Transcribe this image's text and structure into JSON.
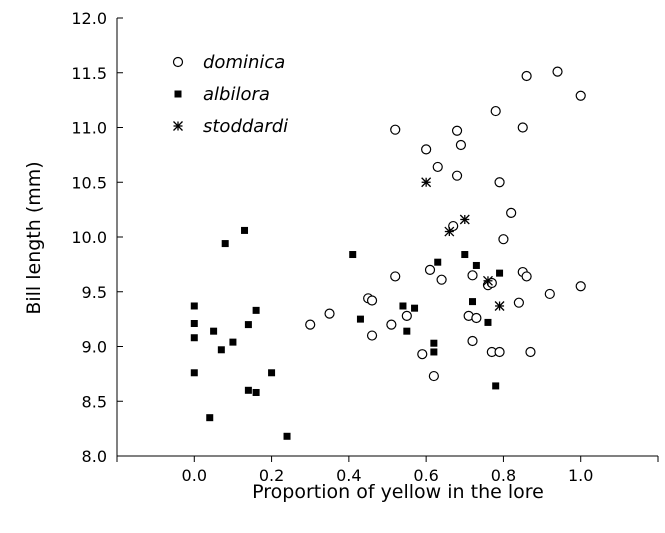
{
  "chart_data": {
    "type": "scatter",
    "xlabel": "Proportion of yellow in the lore",
    "ylabel": "Bill length (mm)",
    "xlim": [
      -0.2,
      1.2
    ],
    "ylim": [
      8.0,
      12.0
    ],
    "x_ticks": [
      "0.0",
      "0.2",
      "0.4",
      "0.6",
      "0.8",
      "1.0"
    ],
    "y_ticks": [
      "8.0",
      "8.5",
      "9.0",
      "9.5",
      "10.0",
      "10.5",
      "11.0",
      "11.5",
      "12.0"
    ],
    "legend_position": "top-left",
    "grid": false,
    "series": [
      {
        "name": "dominica",
        "marker": "open-circle",
        "points": [
          [
            0.3,
            9.2
          ],
          [
            0.35,
            9.3
          ],
          [
            0.45,
            9.44
          ],
          [
            0.46,
            9.42
          ],
          [
            0.46,
            9.1
          ],
          [
            0.51,
            9.2
          ],
          [
            0.52,
            9.64
          ],
          [
            0.52,
            10.98
          ],
          [
            0.55,
            9.28
          ],
          [
            0.59,
            8.93
          ],
          [
            0.6,
            10.8
          ],
          [
            0.61,
            9.7
          ],
          [
            0.62,
            8.73
          ],
          [
            0.63,
            10.64
          ],
          [
            0.64,
            9.61
          ],
          [
            0.67,
            10.1
          ],
          [
            0.68,
            10.97
          ],
          [
            0.68,
            10.56
          ],
          [
            0.69,
            10.84
          ],
          [
            0.71,
            9.28
          ],
          [
            0.72,
            9.05
          ],
          [
            0.72,
            9.65
          ],
          [
            0.73,
            9.26
          ],
          [
            0.76,
            9.56
          ],
          [
            0.77,
            8.95
          ],
          [
            0.77,
            9.58
          ],
          [
            0.78,
            11.15
          ],
          [
            0.79,
            10.5
          ],
          [
            0.79,
            8.95
          ],
          [
            0.8,
            9.98
          ],
          [
            0.82,
            10.22
          ],
          [
            0.84,
            9.4
          ],
          [
            0.85,
            9.68
          ],
          [
            0.85,
            11.0
          ],
          [
            0.86,
            11.47
          ],
          [
            0.86,
            9.64
          ],
          [
            0.87,
            8.95
          ],
          [
            0.92,
            9.48
          ],
          [
            0.94,
            11.51
          ],
          [
            1.0,
            11.29
          ],
          [
            1.0,
            9.55
          ]
        ]
      },
      {
        "name": "albilora",
        "marker": "filled-square",
        "points": [
          [
            0.0,
            9.37
          ],
          [
            0.0,
            9.21
          ],
          [
            0.0,
            9.08
          ],
          [
            0.0,
            8.76
          ],
          [
            0.04,
            8.35
          ],
          [
            0.05,
            9.14
          ],
          [
            0.07,
            8.97
          ],
          [
            0.08,
            9.94
          ],
          [
            0.1,
            9.04
          ],
          [
            0.13,
            10.06
          ],
          [
            0.14,
            9.2
          ],
          [
            0.14,
            8.6
          ],
          [
            0.16,
            9.33
          ],
          [
            0.16,
            8.58
          ],
          [
            0.2,
            8.76
          ],
          [
            0.24,
            8.18
          ],
          [
            0.41,
            9.84
          ],
          [
            0.43,
            9.25
          ],
          [
            0.54,
            9.37
          ],
          [
            0.55,
            9.14
          ],
          [
            0.57,
            9.35
          ],
          [
            0.62,
            9.03
          ],
          [
            0.62,
            8.95
          ],
          [
            0.63,
            9.77
          ],
          [
            0.7,
            9.84
          ],
          [
            0.72,
            9.41
          ],
          [
            0.73,
            9.74
          ],
          [
            0.76,
            9.22
          ],
          [
            0.78,
            8.64
          ],
          [
            0.79,
            9.67
          ]
        ]
      },
      {
        "name": "stoddardi",
        "marker": "asterisk",
        "points": [
          [
            0.6,
            10.5
          ],
          [
            0.66,
            10.05
          ],
          [
            0.7,
            10.16
          ],
          [
            0.76,
            9.6
          ],
          [
            0.79,
            9.37
          ]
        ]
      }
    ]
  }
}
